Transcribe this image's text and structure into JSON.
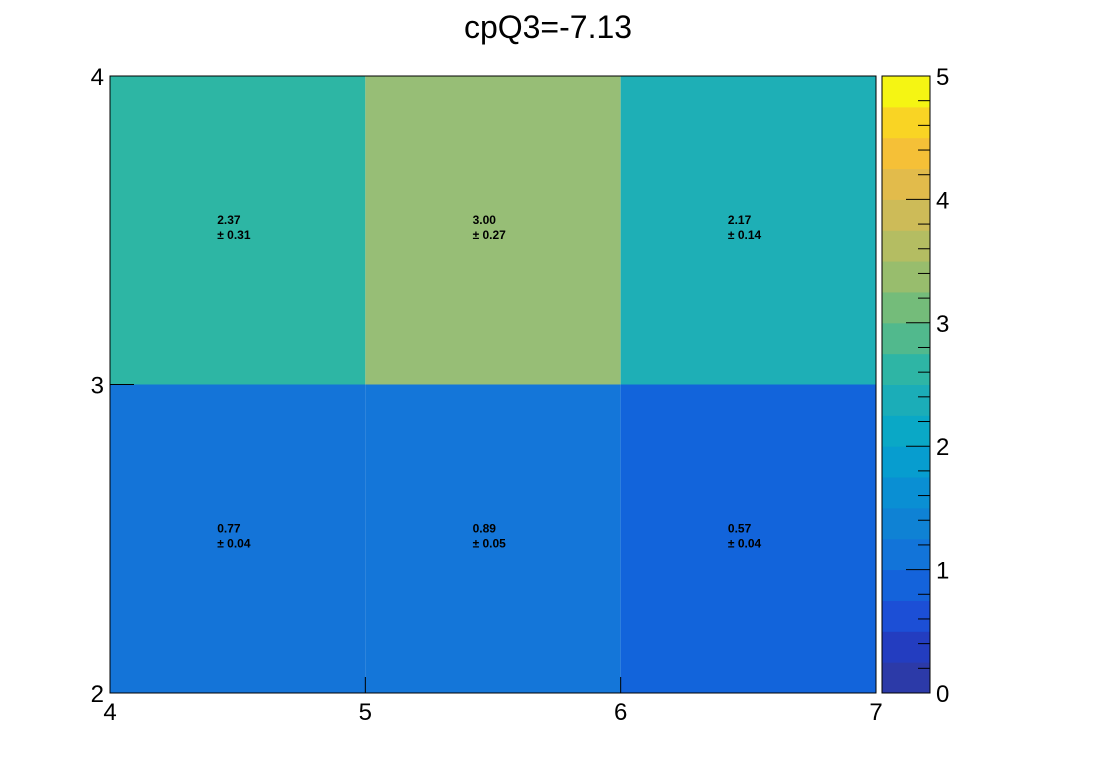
{
  "chart_data": {
    "type": "heatmap",
    "title": "cpQ3=-7.13",
    "xlabel": "",
    "ylabel": "",
    "x_bin_edges": [
      4,
      5,
      6,
      7
    ],
    "y_bin_edges": [
      2,
      3,
      4
    ],
    "xlim": [
      4,
      7
    ],
    "ylim": [
      2,
      4
    ],
    "x_ticks": [
      "4",
      "5",
      "6",
      "7"
    ],
    "y_ticks": [
      "2",
      "3",
      "4"
    ],
    "colorbar": {
      "range": [
        0,
        5
      ],
      "ticks": [
        "0",
        "1",
        "2",
        "3",
        "4",
        "5"
      ],
      "steps": 20,
      "colors": [
        "#2c3aa8",
        "#233dc0",
        "#1c4fd6",
        "#1463db",
        "#1274d9",
        "#0f82d4",
        "#0a8fd3",
        "#079dcf",
        "#0aa8c6",
        "#1badb8",
        "#2eb5a5",
        "#51b98d",
        "#74bc7a",
        "#98bd6d",
        "#b4bd62",
        "#cdbb58",
        "#e2bb4b",
        "#f5c037",
        "#f9d424",
        "#f5f513"
      ]
    },
    "cells": [
      {
        "x": 4.5,
        "y": 3.5,
        "value": 2.37,
        "label": "2.37",
        "error_label": "± 0.31",
        "color": "#2db6a4"
      },
      {
        "x": 5.5,
        "y": 3.5,
        "value": 3.0,
        "label": "3.00",
        "error_label": "± 0.27",
        "color": "#97be76"
      },
      {
        "x": 6.5,
        "y": 3.5,
        "value": 2.17,
        "label": "2.17",
        "error_label": "± 0.14",
        "color": "#1eafb6"
      },
      {
        "x": 4.5,
        "y": 2.5,
        "value": 0.77,
        "label": "0.77",
        "error_label": "± 0.04",
        "color": "#1474d8"
      },
      {
        "x": 5.5,
        "y": 2.5,
        "value": 0.89,
        "label": "0.89",
        "error_label": "± 0.05",
        "color": "#1476d9"
      },
      {
        "x": 6.5,
        "y": 2.5,
        "value": 0.57,
        "label": "0.57",
        "error_label": "± 0.04",
        "color": "#1264db"
      }
    ],
    "grid": false,
    "legend": "colorbar-right"
  }
}
